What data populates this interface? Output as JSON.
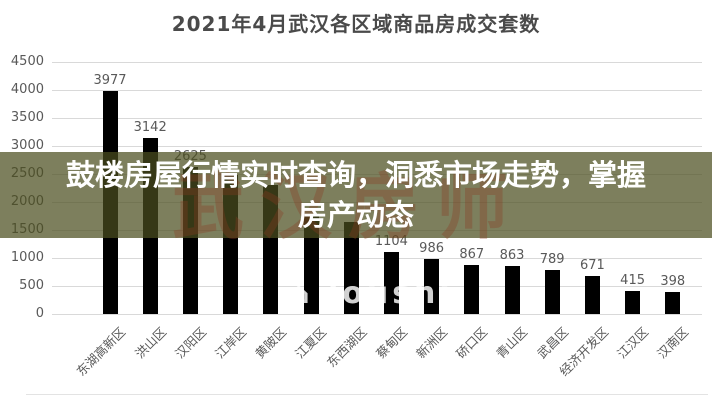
{
  "chart_data": {
    "type": "bar",
    "title": "2021年4月武汉各区域商品房成交套数",
    "categories": [
      "东湖高新区",
      "洪山区",
      "汉阳区",
      "江岸区",
      "黄陂区",
      "江夏区",
      "东西湖区",
      "蔡甸区",
      "新洲区",
      "硚口区",
      "青山区",
      "武昌区",
      "经济开发区",
      "江汉区",
      "汉南区"
    ],
    "values": [
      3977,
      3142,
      2625,
      2480,
      2300,
      1780,
      1650,
      1104,
      986,
      867,
      863,
      789,
      671,
      415,
      398
    ],
    "value_labels": [
      "3977",
      "3142",
      "2625",
      "",
      "",
      "",
      "",
      "1104",
      "986",
      "867",
      "863",
      "789",
      "671",
      "415",
      "398"
    ],
    "xlabel": "",
    "ylabel": "",
    "ylim": [
      0,
      4500
    ],
    "ytick_step": 500,
    "grid": true,
    "legend": false,
    "bar_color": "#000000",
    "value_label_color": "#595959",
    "axis_label_color": "#595959",
    "gridline_color": "#d9d9d9"
  },
  "banner": {
    "lines": [
      "鼓楼房屋行情实时查询，洞悉市场走势，掌握",
      "房产动态"
    ],
    "bg_color": "#4b4d1e",
    "text_color": "#ffffff"
  },
  "watermarks": {
    "calligraphy_text": "武汉房师",
    "latin_text": "loushi",
    "house_icon": "⌂"
  }
}
